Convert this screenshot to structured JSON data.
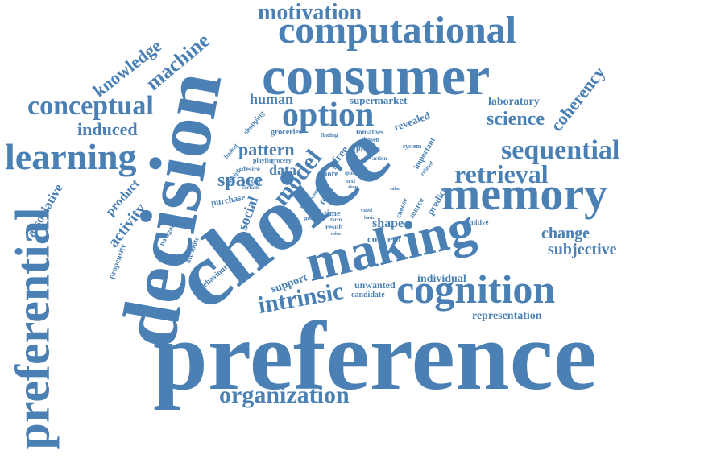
{
  "palette": {
    "text": "#4a80b4",
    "background": "#ffffff"
  },
  "words": [
    "preference",
    "choice",
    "decision",
    "consumer",
    "computational",
    "memory",
    "making",
    "cognition",
    "preferential",
    "learning",
    "conceptual",
    "option",
    "sequential",
    "retrieval",
    "organization",
    "motivation",
    "intrinsic",
    "science",
    "coherency",
    "machine",
    "knowledge",
    "induced",
    "model",
    "pattern",
    "space",
    "data",
    "human",
    "supermarket",
    "laboratory",
    "change",
    "subjective",
    "representation",
    "individual",
    "support",
    "unwanted",
    "candidate",
    "concept",
    "shape",
    "time",
    "topic",
    "social",
    "product",
    "activity",
    "associative",
    "propensity",
    "navigate",
    "behaviour",
    "attribute",
    "purchase",
    "desire",
    "playlist",
    "grocery",
    "groceries",
    "shopping",
    "basket",
    "multiple",
    "free",
    "project",
    "revealed",
    "important",
    "predict",
    "source",
    "choose",
    "cognitive",
    "system",
    "related",
    "tomatoes",
    "chosen",
    "action",
    "finding",
    "more",
    "query",
    "text",
    "shop",
    "salad",
    "person",
    "certain",
    "goal",
    "entry",
    "based",
    "result",
    "value",
    "term",
    "basic",
    "cued",
    "prior",
    "list"
  ]
}
